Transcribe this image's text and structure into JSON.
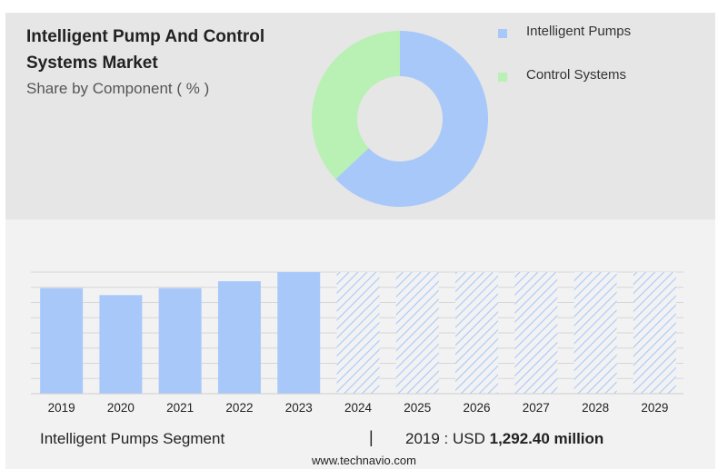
{
  "header": {
    "title": "Intelligent Pump And Control Systems Market",
    "subtitle": "Share by Component ( % )"
  },
  "colors": {
    "intelligent_pumps": "#a9c8fa",
    "control_systems": "#b9f0b3",
    "panel_top": "#e6e6e6",
    "panel_bottom": "#f2f2f2"
  },
  "chart_data": [
    {
      "type": "pie",
      "variant": "donut",
      "subtitle": "Share by Component ( % )",
      "categories": [
        "Intelligent Pumps",
        "Control Systems"
      ],
      "values": [
        63,
        37
      ],
      "legend": "right"
    },
    {
      "type": "bar",
      "categories": [
        "2019",
        "2020",
        "2021",
        "2022",
        "2023",
        "2024",
        "2025",
        "2026",
        "2027",
        "2028",
        "2029"
      ],
      "values": [
        1292.4,
        1207,
        1292,
        1377,
        1488,
        null,
        null,
        null,
        null,
        null,
        null
      ],
      "forecast_categories": [
        "2024",
        "2025",
        "2026",
        "2027",
        "2028",
        "2029"
      ],
      "ylim": [
        0,
        1488
      ],
      "grid": true,
      "xlabel": "",
      "ylabel": ""
    }
  ],
  "footer": {
    "segment_label": "Intelligent Pumps Segment",
    "separator": "|",
    "year_prefix": "2019 : USD",
    "value_text": "1,292.40 million",
    "website": "www.technavio.com"
  }
}
